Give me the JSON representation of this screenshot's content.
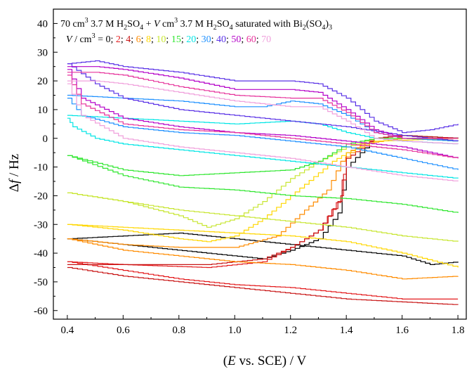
{
  "chart_data": {
    "type": "line",
    "title": {
      "prefix": "70 cm",
      "sup1": "3",
      "part1": " 3.7 M H",
      "sub1": "2",
      "part2": "SO",
      "sub2": "4",
      "part3": " + ",
      "var": "V",
      "part4": " cm",
      "sup2": "3",
      "part5": " 3.7 M H",
      "sub3": "2",
      "part6": "SO",
      "sub4": "4",
      "part7": " saturated with Bi",
      "sub5": "2",
      "part8": "(SO",
      "sub6": "4",
      "part9": ")",
      "sub7": "3"
    },
    "legend": {
      "var": "V",
      "unit_text": " / cm",
      "unit_sup": "3",
      "equals": " = ",
      "sep": "; ",
      "entries": [
        {
          "label": "0",
          "color": "#000000"
        },
        {
          "label": "2",
          "color": "#e31a1c"
        },
        {
          "label": "4",
          "color": "#c81414"
        },
        {
          "label": "6",
          "color": "#ff8c00"
        },
        {
          "label": "8",
          "color": "#ffd700"
        },
        {
          "label": "10",
          "color": "#c8e632"
        },
        {
          "label": "15",
          "color": "#2ee62e"
        },
        {
          "label": "20",
          "color": "#00e5e5"
        },
        {
          "label": "30",
          "color": "#1e90ff"
        },
        {
          "label": "40",
          "color": "#5a32e6"
        },
        {
          "label": "50",
          "color": "#b400c8"
        },
        {
          "label": "60",
          "color": "#e6329b"
        },
        {
          "label": "70",
          "color": "#f0a0dc"
        }
      ]
    },
    "xlabel": {
      "open": "(",
      "var": "E",
      "rest": " vs. SCE) / V"
    },
    "ylabel": {
      "delta": "Δ",
      "var": "f",
      "rest": " / Hz"
    },
    "xlim": [
      0.35,
      1.83
    ],
    "ylim": [
      -63,
      45
    ],
    "x_ticks": [
      "0.4",
      "0.6",
      "0.8",
      "1.0",
      "1.2",
      "1.4",
      "1.6",
      "1.8"
    ],
    "y_ticks": [
      "-60",
      "-50",
      "-40",
      "-30",
      "-20",
      "-10",
      "0",
      "10",
      "20",
      "30",
      "40"
    ],
    "grid": false,
    "series": [
      {
        "color": "#000000",
        "x": [
          0.4,
          0.6,
          0.9,
          1.1,
          1.2,
          1.3,
          1.37,
          1.4,
          1.5,
          1.6,
          1.8
        ],
        "y": [
          -35,
          -37,
          -40,
          -42,
          -39,
          -35,
          -26,
          -10,
          0,
          1,
          0
        ]
      },
      {
        "color": "#000000",
        "x": [
          0.4,
          0.6,
          0.8,
          0.9,
          1.0,
          1.2,
          1.4,
          1.6,
          1.7,
          1.8
        ],
        "y": [
          -35,
          -34,
          -33,
          -34,
          -35,
          -37,
          -39,
          -41,
          -44,
          -43
        ]
      },
      {
        "color": "#e31a1c",
        "x": [
          0.4,
          0.6,
          0.9,
          1.1,
          1.2,
          1.3,
          1.38,
          1.4,
          1.5,
          1.6,
          1.8
        ],
        "y": [
          -43,
          -44,
          -45,
          -43,
          -38,
          -32,
          -20,
          -5,
          0,
          1,
          -1
        ]
      },
      {
        "color": "#e31a1c",
        "x": [
          0.4,
          0.6,
          0.8,
          1.0,
          1.2,
          1.4,
          1.6,
          1.8
        ],
        "y": [
          -43,
          -46,
          -49,
          -51,
          -52,
          -54,
          -56,
          -56
        ]
      },
      {
        "color": "#c81414",
        "x": [
          0.4,
          0.6,
          0.9,
          1.1,
          1.2,
          1.3,
          1.37,
          1.4,
          1.5,
          1.6,
          1.8
        ],
        "y": [
          -44,
          -44,
          -44,
          -42,
          -38,
          -32,
          -22,
          -7,
          0,
          1,
          0
        ]
      },
      {
        "color": "#c81414",
        "x": [
          0.4,
          0.6,
          0.8,
          1.0,
          1.2,
          1.4,
          1.6,
          1.8
        ],
        "y": [
          -45,
          -48,
          -50,
          -52,
          -54,
          -56,
          -57,
          -58
        ]
      },
      {
        "color": "#ff8c00",
        "x": [
          0.4,
          0.6,
          0.8,
          1.0,
          1.15,
          1.25,
          1.33,
          1.38,
          1.45,
          1.6,
          1.8
        ],
        "y": [
          -35,
          -37,
          -38,
          -38,
          -34,
          -25,
          -18,
          -8,
          -2,
          0,
          0
        ]
      },
      {
        "color": "#ff8c00",
        "x": [
          0.4,
          0.6,
          0.8,
          1.0,
          1.2,
          1.4,
          1.6,
          1.8
        ],
        "y": [
          -35,
          -39,
          -41,
          -43,
          -44,
          -46,
          -49,
          -48
        ]
      },
      {
        "color": "#ffd700",
        "x": [
          0.4,
          0.6,
          0.8,
          0.9,
          1.0,
          1.1,
          1.2,
          1.3,
          1.35,
          1.4,
          1.5,
          1.8
        ],
        "y": [
          -30,
          -32,
          -35,
          -36,
          -34,
          -28,
          -20,
          -12,
          -8,
          -5,
          -1,
          0
        ]
      },
      {
        "color": "#ffd700",
        "x": [
          0.4,
          0.6,
          0.8,
          1.0,
          1.2,
          1.4,
          1.6,
          1.8
        ],
        "y": [
          -30,
          -31,
          -32,
          -33,
          -34,
          -36,
          -40,
          -45
        ]
      },
      {
        "color": "#c8e632",
        "x": [
          0.4,
          0.6,
          0.8,
          0.9,
          1.0,
          1.1,
          1.2,
          1.3,
          1.4,
          1.5,
          1.8
        ],
        "y": [
          -19,
          -22,
          -27,
          -31,
          -28,
          -22,
          -14,
          -8,
          -3,
          0,
          0
        ]
      },
      {
        "color": "#c8e632",
        "x": [
          0.4,
          0.6,
          0.8,
          1.0,
          1.2,
          1.4,
          1.6,
          1.8
        ],
        "y": [
          -19,
          -22,
          -25,
          -27,
          -29,
          -31,
          -34,
          -36
        ]
      },
      {
        "color": "#2ee62e",
        "x": [
          0.4,
          0.6,
          0.8,
          1.0,
          1.2,
          1.3,
          1.4,
          1.5,
          1.6,
          1.8
        ],
        "y": [
          -6,
          -11,
          -13,
          -12,
          -11,
          -8,
          -2,
          0,
          0,
          -1
        ]
      },
      {
        "color": "#2ee62e",
        "x": [
          0.4,
          0.6,
          0.8,
          1.0,
          1.2,
          1.4,
          1.6,
          1.8
        ],
        "y": [
          -6,
          -13,
          -17,
          -18,
          -20,
          -21,
          -23,
          -26
        ]
      },
      {
        "color": "#00e5e5",
        "x": [
          0.4,
          0.6,
          0.8,
          1.0,
          1.2,
          1.3,
          1.4,
          1.5,
          1.6,
          1.8
        ],
        "y": [
          8,
          7,
          6,
          5,
          6,
          5,
          2,
          0,
          -1,
          -2
        ]
      },
      {
        "color": "#00e5e5",
        "x": [
          0.4,
          0.42,
          0.5,
          0.6,
          0.8,
          1.0,
          1.2,
          1.4,
          1.6,
          1.8
        ],
        "y": [
          7,
          4,
          0,
          -2,
          -4,
          -6,
          -8,
          -10,
          -12,
          -14
        ]
      },
      {
        "color": "#1e90ff",
        "x": [
          0.4,
          0.6,
          0.8,
          1.0,
          1.1,
          1.2,
          1.3,
          1.4,
          1.5,
          1.6,
          1.8
        ],
        "y": [
          15,
          14,
          13,
          11,
          11,
          13,
          12,
          8,
          2,
          0,
          -1
        ]
      },
      {
        "color": "#1e90ff",
        "x": [
          0.4,
          0.45,
          0.6,
          0.8,
          1.0,
          1.2,
          1.4,
          1.6,
          1.8
        ],
        "y": [
          14,
          8,
          4,
          2,
          1,
          -1,
          -3,
          -7,
          -11
        ]
      },
      {
        "color": "#5a32e6",
        "x": [
          0.4,
          0.5,
          0.6,
          0.8,
          1.0,
          1.2,
          1.3,
          1.4,
          1.5,
          1.6,
          1.7,
          1.8
        ],
        "y": [
          26,
          27,
          25,
          23,
          20,
          20,
          19,
          14,
          6,
          2,
          3,
          5
        ]
      },
      {
        "color": "#5a32e6",
        "x": [
          0.4,
          0.5,
          0.6,
          0.8,
          1.0,
          1.2,
          1.4,
          1.6,
          1.8
        ],
        "y": [
          26,
          19,
          14,
          10,
          8,
          6,
          4,
          1,
          -1
        ]
      },
      {
        "color": "#b400c8",
        "x": [
          0.4,
          0.5,
          0.6,
          0.8,
          1.0,
          1.2,
          1.3,
          1.4,
          1.5,
          1.6,
          1.8
        ],
        "y": [
          25,
          25,
          24,
          21,
          17,
          17,
          16,
          10,
          3,
          0,
          0
        ]
      },
      {
        "color": "#b400c8",
        "x": [
          0.4,
          0.45,
          0.6,
          0.8,
          1.0,
          1.2,
          1.4,
          1.6,
          1.8
        ],
        "y": [
          24,
          14,
          7,
          4,
          2,
          1,
          -1,
          -3,
          -7
        ]
      },
      {
        "color": "#e6329b",
        "x": [
          0.4,
          0.5,
          0.6,
          0.8,
          1.0,
          1.2,
          1.3,
          1.4,
          1.5,
          1.6,
          1.8
        ],
        "y": [
          23,
          23,
          22,
          18,
          15,
          14,
          14,
          9,
          2,
          0,
          0
        ]
      },
      {
        "color": "#e6329b",
        "x": [
          0.4,
          0.45,
          0.6,
          0.8,
          1.0,
          1.2,
          1.4,
          1.6,
          1.8
        ],
        "y": [
          22,
          12,
          5,
          3,
          2,
          0,
          -2,
          -4,
          -7
        ]
      },
      {
        "color": "#f0a0dc",
        "x": [
          0.4,
          0.5,
          0.6,
          0.8,
          1.0,
          1.2,
          1.3,
          1.4,
          1.5,
          1.6,
          1.8
        ],
        "y": [
          20,
          20,
          19,
          16,
          13,
          11,
          11,
          6,
          0,
          -1,
          -2
        ]
      },
      {
        "color": "#f0a0dc",
        "x": [
          0.4,
          0.45,
          0.6,
          0.8,
          1.0,
          1.2,
          1.4,
          1.6,
          1.8
        ],
        "y": [
          19,
          8,
          0,
          -3,
          -5,
          -7,
          -10,
          -13,
          -15
        ]
      }
    ]
  }
}
